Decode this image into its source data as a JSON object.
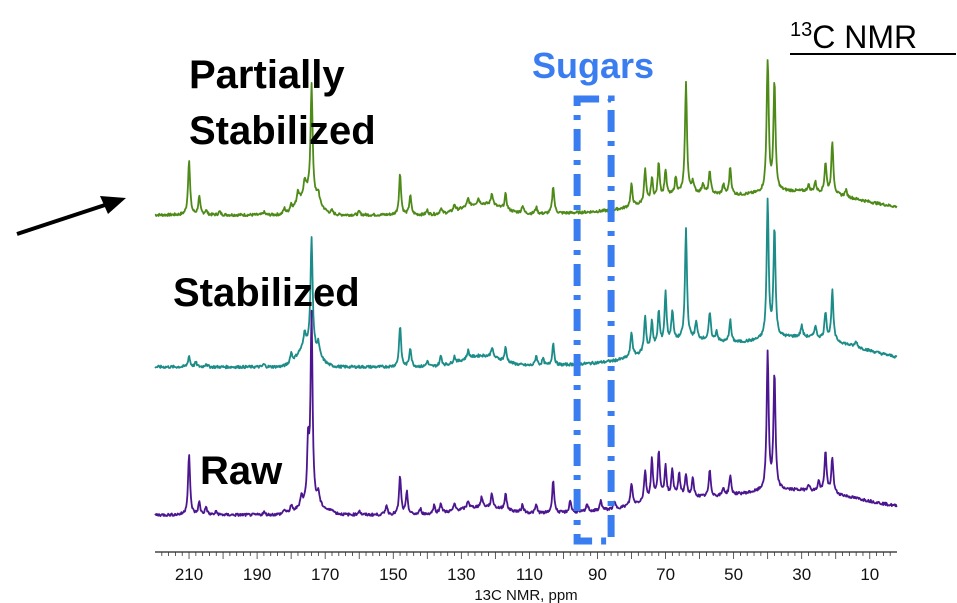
{
  "chart_data": {
    "type": "line",
    "title": "13C NMR",
    "xlabel": "13C NMR, ppm",
    "ylabel": "",
    "x_reversed": true,
    "xlim": [
      220,
      2
    ],
    "xticks": [
      210,
      190,
      170,
      150,
      130,
      110,
      90,
      70,
      50,
      30,
      10
    ],
    "annotation": {
      "label": "Sugars",
      "range_ppm": [
        96,
        86
      ],
      "style": "dash-dot box",
      "color": "#3A7DF0"
    },
    "arrow_target": "Partially Stabilized",
    "grid": false,
    "legend": "none",
    "series": [
      {
        "name": "Partially\nStabilized",
        "color": "#4E8A18",
        "peaks": [
          [
            210,
            100
          ],
          [
            207,
            32
          ],
          [
            205,
            8
          ],
          [
            201,
            6
          ],
          [
            188,
            5
          ],
          [
            182,
            10
          ],
          [
            180,
            12
          ],
          [
            178,
            22
          ],
          [
            176,
            25
          ],
          [
            174,
            200
          ],
          [
            172,
            18
          ],
          [
            168,
            6
          ],
          [
            160,
            6
          ],
          [
            148,
            75
          ],
          [
            145,
            35
          ],
          [
            140,
            8
          ],
          [
            136,
            10
          ],
          [
            132,
            12
          ],
          [
            128,
            14
          ],
          [
            125,
            10
          ],
          [
            121,
            22
          ],
          [
            117,
            28
          ],
          [
            112,
            14
          ],
          [
            108,
            12
          ],
          [
            103,
            50
          ],
          [
            80,
            40
          ],
          [
            76,
            60
          ],
          [
            74,
            40
          ],
          [
            72,
            65
          ],
          [
            70,
            48
          ],
          [
            67,
            30
          ],
          [
            64,
            200
          ],
          [
            62,
            20
          ],
          [
            59,
            18
          ],
          [
            57,
            40
          ],
          [
            53,
            18
          ],
          [
            51,
            50
          ],
          [
            40,
            250
          ],
          [
            38,
            200
          ],
          [
            28,
            12
          ],
          [
            26,
            18
          ],
          [
            23,
            55
          ],
          [
            21,
            95
          ],
          [
            17,
            12
          ]
        ],
        "humps": [
          [
            175,
            40,
            4
          ],
          [
            124,
            20,
            8
          ],
          [
            65,
            18,
            12
          ],
          [
            40,
            30,
            40
          ],
          [
            28,
            15,
            20
          ]
        ]
      },
      {
        "name": "Stabilized",
        "color": "#1C8C88",
        "peaks": [
          [
            210,
            20
          ],
          [
            208,
            8
          ],
          [
            205,
            6
          ],
          [
            188,
            5
          ],
          [
            180,
            18
          ],
          [
            176,
            25
          ],
          [
            174,
            200
          ],
          [
            172,
            20
          ],
          [
            148,
            75
          ],
          [
            145,
            35
          ],
          [
            140,
            10
          ],
          [
            136,
            18
          ],
          [
            132,
            12
          ],
          [
            128,
            14
          ],
          [
            121,
            18
          ],
          [
            117,
            25
          ],
          [
            108,
            18
          ],
          [
            106,
            12
          ],
          [
            103,
            40
          ],
          [
            80,
            45
          ],
          [
            76,
            65
          ],
          [
            74,
            50
          ],
          [
            72,
            62
          ],
          [
            70,
            92
          ],
          [
            68,
            55
          ],
          [
            64,
            200
          ],
          [
            61,
            30
          ],
          [
            57,
            50
          ],
          [
            55,
            18
          ],
          [
            51,
            40
          ],
          [
            40,
            250
          ],
          [
            38,
            200
          ],
          [
            30,
            20
          ],
          [
            26,
            22
          ],
          [
            23,
            50
          ],
          [
            21,
            90
          ],
          [
            14,
            10
          ]
        ],
        "humps": [
          [
            175,
            40,
            4
          ],
          [
            124,
            20,
            8
          ],
          [
            65,
            25,
            12
          ],
          [
            40,
            35,
            40
          ],
          [
            28,
            22,
            20
          ]
        ]
      },
      {
        "name": "Raw",
        "color": "#4B1690",
        "peaks": [
          [
            210,
            110
          ],
          [
            207,
            22
          ],
          [
            205,
            14
          ],
          [
            202,
            6
          ],
          [
            188,
            5
          ],
          [
            182,
            8
          ],
          [
            180,
            12
          ],
          [
            177,
            20
          ],
          [
            175,
            110
          ],
          [
            174,
            340
          ],
          [
            172,
            22
          ],
          [
            168,
            6
          ],
          [
            160,
            8
          ],
          [
            152,
            18
          ],
          [
            148,
            70
          ],
          [
            146,
            40
          ],
          [
            142,
            10
          ],
          [
            138,
            15
          ],
          [
            136,
            18
          ],
          [
            132,
            12
          ],
          [
            128,
            14
          ],
          [
            124,
            18
          ],
          [
            121,
            25
          ],
          [
            117,
            30
          ],
          [
            112,
            14
          ],
          [
            108,
            15
          ],
          [
            103,
            60
          ],
          [
            98,
            22
          ],
          [
            93,
            14
          ],
          [
            89,
            18
          ],
          [
            85,
            12
          ],
          [
            80,
            40
          ],
          [
            76,
            55
          ],
          [
            74,
            72
          ],
          [
            72,
            85
          ],
          [
            70,
            55
          ],
          [
            68,
            48
          ],
          [
            66,
            40
          ],
          [
            64,
            40
          ],
          [
            62,
            32
          ],
          [
            57,
            48
          ],
          [
            53,
            14
          ],
          [
            51,
            35
          ],
          [
            40,
            250
          ],
          [
            38,
            210
          ],
          [
            28,
            12
          ],
          [
            25,
            18
          ],
          [
            23,
            75
          ],
          [
            21,
            65
          ]
        ],
        "humps": [
          [
            174,
            18,
            5
          ],
          [
            124,
            14,
            10
          ],
          [
            70,
            12,
            10
          ],
          [
            40,
            35,
            40
          ],
          [
            28,
            12,
            20
          ]
        ]
      }
    ]
  }
}
